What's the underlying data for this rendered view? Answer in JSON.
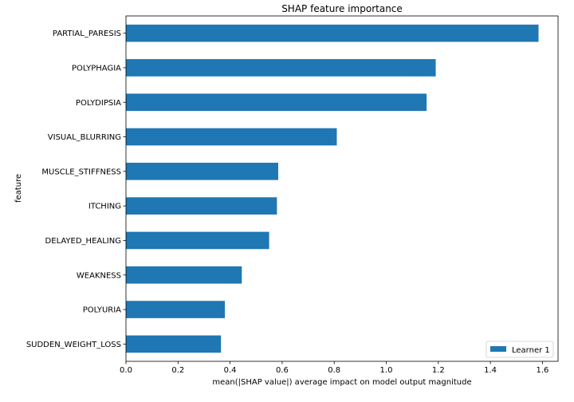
{
  "chart_data": {
    "type": "bar",
    "orientation": "horizontal",
    "title": "SHAP feature importance",
    "xlabel": "mean(|SHAP value|) average impact on model output magnitude",
    "ylabel": "feature",
    "xlim": [
      0,
      1.66
    ],
    "xticks": [
      "0.0",
      "0.2",
      "0.4",
      "0.6",
      "0.8",
      "1.0",
      "1.2",
      "1.4",
      "1.6"
    ],
    "categories": [
      "PARTIAL_PARESIS",
      "POLYPHAGIA",
      "POLYDIPSIA",
      "VISUAL_BLURRING",
      "MUSCLE_STIFFNESS",
      "ITCHING",
      "DELAYED_HEALING",
      "WEAKNESS",
      "POLYURIA",
      "SUDDEN_WEIGHT_LOSS"
    ],
    "series": [
      {
        "name": "Learner 1",
        "color": "#1f77b4",
        "values": [
          1.585,
          1.19,
          1.155,
          0.81,
          0.585,
          0.58,
          0.55,
          0.445,
          0.38,
          0.365
        ]
      }
    ],
    "legend": {
      "position": "bottom-right"
    },
    "grid": false
  }
}
